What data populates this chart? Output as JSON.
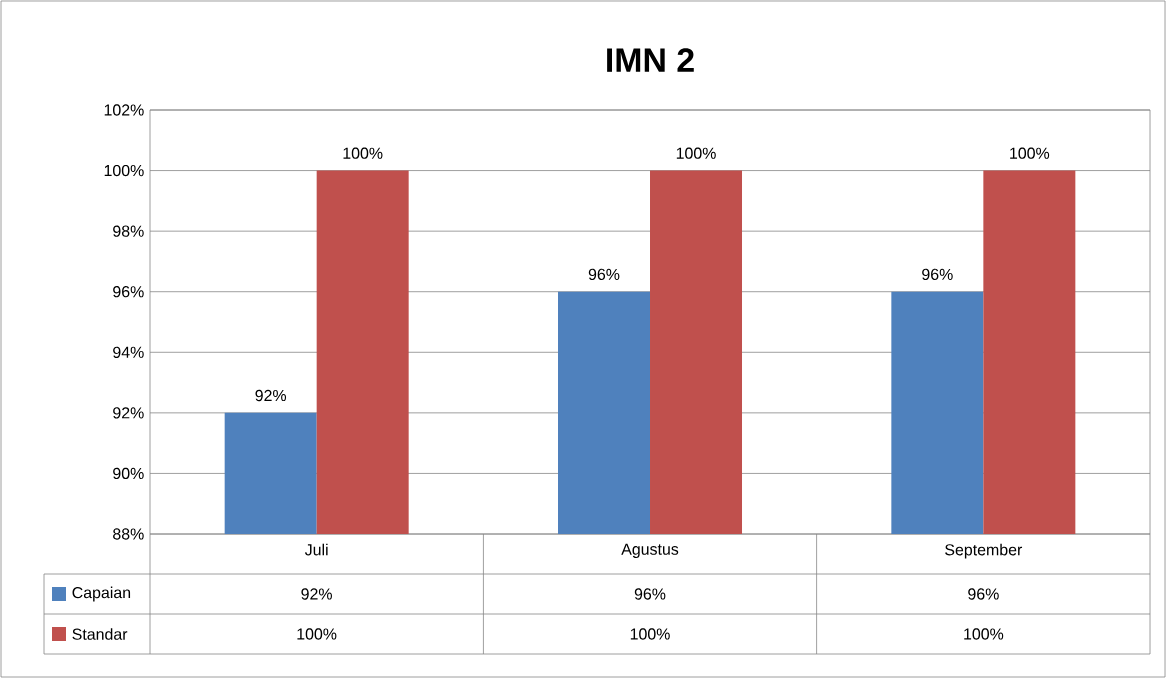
{
  "chart_data": {
    "type": "bar",
    "title": "IMN 2",
    "categories": [
      "Juli",
      "Agustus",
      "September"
    ],
    "series": [
      {
        "name": "Capaian",
        "color": "#4f81bd",
        "values": [
          92,
          96,
          96
        ],
        "value_labels": [
          "92%",
          "96%",
          "96%"
        ]
      },
      {
        "name": "Standar",
        "color": "#c0504d",
        "values": [
          100,
          100,
          100
        ],
        "value_labels": [
          "100%",
          "100%",
          "100%"
        ]
      }
    ],
    "ylim": [
      88,
      102
    ],
    "yticks": [
      {
        "value": 88,
        "label": "88%"
      },
      {
        "value": 90,
        "label": "90%"
      },
      {
        "value": 92,
        "label": "92%"
      },
      {
        "value": 94,
        "label": "94%"
      },
      {
        "value": 96,
        "label": "96%"
      },
      {
        "value": 98,
        "label": "98%"
      },
      {
        "value": 100,
        "label": "100%"
      },
      {
        "value": 102,
        "label": "102%"
      }
    ],
    "grid": "y",
    "legend": "bottom"
  }
}
